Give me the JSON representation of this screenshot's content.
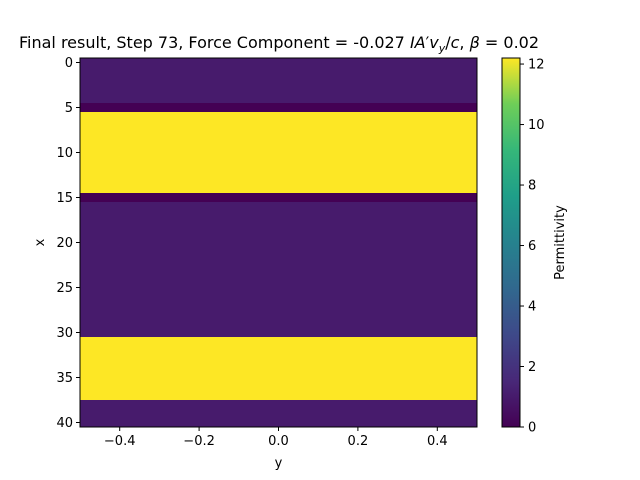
{
  "chart_data": {
    "type": "heatmap",
    "title_parts": {
      "prefix": "Final result, Step 73, Force Component = -0.027 ",
      "formula_I": "I",
      "formula_A": "A",
      "formula_prime": "′",
      "formula_v": "v",
      "formula_sub": "y",
      "formula_slash": "/",
      "formula_c": "c",
      "sep": ", ",
      "beta": "β",
      "beta_value": " = 0.02"
    },
    "xlabel": "y",
    "ylabel": "x",
    "xlim": [
      -0.5,
      0.5
    ],
    "ylim": [
      40.5,
      -0.5
    ],
    "xticks": [
      -0.4,
      -0.2,
      0.0,
      0.2,
      0.4
    ],
    "xtick_labels": [
      "−0.4",
      "−0.2",
      "0.0",
      "0.2",
      "0.4"
    ],
    "yticks": [
      0,
      5,
      10,
      15,
      20,
      25,
      30,
      35,
      40
    ],
    "ytick_labels": [
      "0",
      "5",
      "10",
      "15",
      "20",
      "25",
      "30",
      "35",
      "40"
    ],
    "colorbar": {
      "label": "Permittivity",
      "range": [
        0,
        12.2
      ],
      "ticks": [
        0,
        2,
        4,
        6,
        8,
        10,
        12
      ],
      "tick_labels": [
        "0",
        "2",
        "4",
        "6",
        "8",
        "10",
        "12"
      ],
      "colormap": "viridis"
    },
    "bands": [
      {
        "x_start": -0.5,
        "x_end": 4.5,
        "value": 1.0
      },
      {
        "x_start": 4.5,
        "x_end": 5.5,
        "value": 0.0
      },
      {
        "x_start": 5.5,
        "x_end": 14.5,
        "value": 12.2
      },
      {
        "x_start": 14.5,
        "x_end": 15.5,
        "value": 0.0
      },
      {
        "x_start": 15.5,
        "x_end": 30.5,
        "value": 1.0
      },
      {
        "x_start": 30.5,
        "x_end": 37.5,
        "value": 12.2
      },
      {
        "x_start": 37.5,
        "x_end": 40.5,
        "value": 1.0
      }
    ]
  }
}
